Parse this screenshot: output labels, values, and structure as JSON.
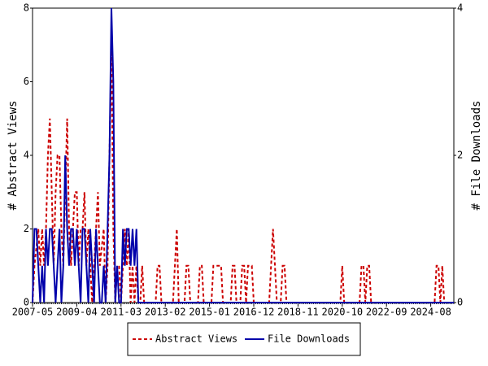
{
  "chart_data": {
    "type": "line",
    "x": [
      "2007-05",
      "2007-06",
      "2007-07",
      "2007-08",
      "2007-09",
      "2007-10",
      "2007-11",
      "2007-12",
      "2008-01",
      "2008-02",
      "2008-03",
      "2008-04",
      "2008-05",
      "2008-06",
      "2008-07",
      "2008-08",
      "2008-09",
      "2008-10",
      "2008-11",
      "2008-12",
      "2009-01",
      "2009-02",
      "2009-03",
      "2009-04",
      "2009-05",
      "2009-06",
      "2009-07",
      "2009-08",
      "2009-09",
      "2009-10",
      "2009-11",
      "2009-12",
      "2010-01",
      "2010-02",
      "2010-03",
      "2010-04",
      "2010-05",
      "2010-06",
      "2010-07",
      "2010-08",
      "2010-09",
      "2010-10",
      "2010-11",
      "2010-12",
      "2011-01",
      "2011-02",
      "2011-03",
      "2011-04",
      "2011-05",
      "2011-06",
      "2011-07",
      "2011-08",
      "2011-09",
      "2011-10",
      "2011-11",
      "2011-12",
      "2012-01",
      "2012-02",
      "2012-03",
      "2012-04",
      "2012-05",
      "2012-06",
      "2012-07",
      "2012-08",
      "2012-09",
      "2012-10",
      "2012-11",
      "2012-12",
      "2013-01",
      "2013-02",
      "2013-03",
      "2013-04",
      "2013-05",
      "2013-06",
      "2013-07",
      "2013-08",
      "2013-09",
      "2013-10",
      "2013-11",
      "2013-12",
      "2014-01",
      "2014-02",
      "2014-03",
      "2014-04",
      "2014-05",
      "2014-06",
      "2014-07",
      "2014-08",
      "2014-09",
      "2014-10",
      "2014-11",
      "2014-12",
      "2015-01",
      "2015-02",
      "2015-03",
      "2015-04",
      "2015-05",
      "2015-06",
      "2015-07",
      "2015-08",
      "2015-09",
      "2015-10",
      "2015-11",
      "2015-12",
      "2016-01",
      "2016-02",
      "2016-03",
      "2016-04",
      "2016-05",
      "2016-06",
      "2016-07",
      "2016-08",
      "2016-09",
      "2016-10",
      "2016-11",
      "2016-12",
      "2017-01",
      "2017-02",
      "2017-03",
      "2017-04",
      "2017-05",
      "2017-06",
      "2017-07",
      "2017-08",
      "2017-09",
      "2017-10",
      "2017-11",
      "2017-12",
      "2018-01",
      "2018-02",
      "2018-03",
      "2018-04",
      "2018-05",
      "2018-06",
      "2018-07",
      "2018-08",
      "2018-09",
      "2018-10",
      "2018-11",
      "2018-12",
      "2019-01",
      "2019-02",
      "2019-03",
      "2019-04",
      "2019-05",
      "2019-06",
      "2019-07",
      "2019-08",
      "2019-09",
      "2019-10",
      "2019-11",
      "2019-12",
      "2020-01",
      "2020-02",
      "2020-03",
      "2020-04",
      "2020-05",
      "2020-06",
      "2020-07",
      "2020-08",
      "2020-09",
      "2020-10",
      "2020-11",
      "2020-12",
      "2021-01",
      "2021-02",
      "2021-03",
      "2021-04",
      "2021-05",
      "2021-06",
      "2021-07",
      "2021-08",
      "2021-09",
      "2021-10",
      "2021-11",
      "2021-12",
      "2022-01",
      "2022-02",
      "2022-03",
      "2022-04",
      "2022-05",
      "2022-06",
      "2022-07",
      "2022-08",
      "2022-09",
      "2022-10",
      "2022-11",
      "2022-12",
      "2023-01",
      "2023-02",
      "2023-03",
      "2023-04",
      "2023-05",
      "2023-06",
      "2023-07",
      "2023-08",
      "2023-09",
      "2023-10",
      "2023-11",
      "2023-12",
      "2024-01",
      "2024-02",
      "2024-03",
      "2024-04",
      "2024-05",
      "2024-06",
      "2024-07",
      "2024-08",
      "2024-09",
      "2024-10",
      "2024-11",
      "2024-12",
      "2025-01",
      "2025-02",
      "2025-03",
      "2025-04",
      "2025-05",
      "2025-06",
      "2025-07",
      "2025-08"
    ],
    "xticks": [
      "2007-05",
      "2009-04",
      "2011-03",
      "2013-02",
      "2015-01",
      "2016-12",
      "2018-11",
      "2020-10",
      "2022-09",
      "2024-08"
    ],
    "y_label": "# Abstract Views",
    "y2_label": "# File Downloads",
    "ylim": [
      0,
      8
    ],
    "yticks": [
      0,
      2,
      4,
      6,
      8
    ],
    "y2lim": [
      0,
      4
    ],
    "y2ticks": [
      0,
      2,
      4
    ],
    "series": [
      {
        "name": "Abstract Views",
        "color": "#cc0000",
        "dashed": true,
        "values": [
          0,
          1,
          1.5,
          2,
          1,
          2,
          1,
          2,
          4,
          5,
          3,
          1,
          3,
          4,
          4,
          2,
          1,
          3,
          5,
          2,
          1,
          2,
          3,
          3,
          1,
          2,
          2,
          3,
          1,
          2,
          1,
          0,
          1,
          2,
          3,
          1,
          1.5,
          2,
          0,
          1,
          4,
          7,
          2,
          0,
          1,
          1,
          0,
          1,
          2,
          1,
          2,
          0,
          1,
          0,
          1,
          0,
          0,
          1,
          0,
          0,
          0,
          0,
          0,
          0,
          0,
          1,
          1,
          0,
          0,
          0,
          0,
          0,
          0,
          0,
          1,
          2,
          0,
          0,
          0,
          0,
          1,
          1,
          0,
          0,
          0,
          0,
          0,
          1,
          1,
          0,
          0,
          0,
          0,
          0,
          1,
          1,
          1,
          1,
          1,
          0,
          0,
          0,
          0,
          0,
          1,
          1,
          0,
          0,
          0,
          1,
          1,
          0,
          1,
          1,
          1,
          0,
          0,
          0,
          0,
          0,
          0,
          0,
          0,
          0,
          1,
          2,
          1,
          0,
          0,
          0,
          1,
          1,
          0,
          0,
          0,
          0,
          0,
          0,
          0,
          0,
          0,
          0,
          0,
          0,
          0,
          0,
          0,
          0,
          0,
          0,
          0,
          0,
          0,
          0,
          0,
          0,
          0,
          0,
          0,
          0,
          0,
          1,
          0,
          0,
          0,
          0,
          0,
          0,
          0,
          0,
          0,
          1,
          1,
          0,
          1,
          1,
          0,
          0,
          0,
          0,
          0,
          0,
          0,
          0,
          0,
          0,
          0,
          0,
          0,
          0,
          0,
          0,
          0,
          0,
          0,
          0,
          0,
          0,
          0,
          0,
          0,
          0,
          0,
          0,
          0,
          0,
          0,
          0,
          0,
          0,
          1,
          1,
          0,
          1,
          0,
          0,
          0,
          0,
          0,
          0
        ]
      },
      {
        "name": "File Downloads",
        "color": "#0000aa",
        "axis": "y2",
        "values": [
          0,
          1,
          1,
          0.5,
          0,
          0.5,
          0,
          1,
          0.5,
          1,
          1,
          0.5,
          0,
          0.5,
          1,
          0,
          0.5,
          2,
          1,
          0.5,
          1,
          1,
          0.5,
          1,
          0.5,
          0,
          1,
          1,
          0.5,
          0,
          1,
          0.5,
          0,
          1,
          0.5,
          0,
          0,
          0.5,
          0,
          1,
          2,
          4,
          3,
          0,
          0.5,
          0,
          0,
          1,
          0.5,
          1,
          1,
          0.5,
          1,
          0.5,
          1,
          0,
          0,
          0,
          0,
          0,
          0,
          0,
          0,
          0,
          0,
          0,
          0,
          0,
          0,
          0,
          0,
          0,
          0,
          0,
          0,
          0,
          0,
          0,
          0,
          0,
          0,
          0,
          0,
          0,
          0,
          0,
          0,
          0,
          0,
          0,
          0,
          0,
          0,
          0,
          0,
          0,
          0,
          0,
          0,
          0,
          0,
          0,
          0,
          0,
          0,
          0,
          0,
          0,
          0,
          0,
          0,
          0,
          0,
          0,
          0,
          0,
          0,
          0,
          0,
          0,
          0,
          0,
          0,
          0,
          0,
          0,
          0,
          0,
          0,
          0,
          0,
          0,
          0,
          0,
          0,
          0,
          0,
          0,
          0,
          0,
          0,
          0,
          0,
          0,
          0,
          0,
          0,
          0,
          0,
          0,
          0,
          0,
          0,
          0,
          0,
          0,
          0,
          0,
          0,
          0,
          0,
          0,
          0,
          0,
          0,
          0,
          0,
          0,
          0,
          0,
          0,
          0,
          0,
          0,
          0,
          0,
          0,
          0,
          0,
          0,
          0,
          0,
          0,
          0,
          0,
          0,
          0,
          0,
          0,
          0,
          0,
          0,
          0,
          0,
          0,
          0,
          0,
          0,
          0,
          0,
          0,
          0,
          0,
          0,
          0,
          0,
          0,
          0,
          0,
          0,
          0,
          0,
          0,
          0,
          0,
          0,
          0,
          0,
          0,
          0
        ]
      }
    ]
  }
}
